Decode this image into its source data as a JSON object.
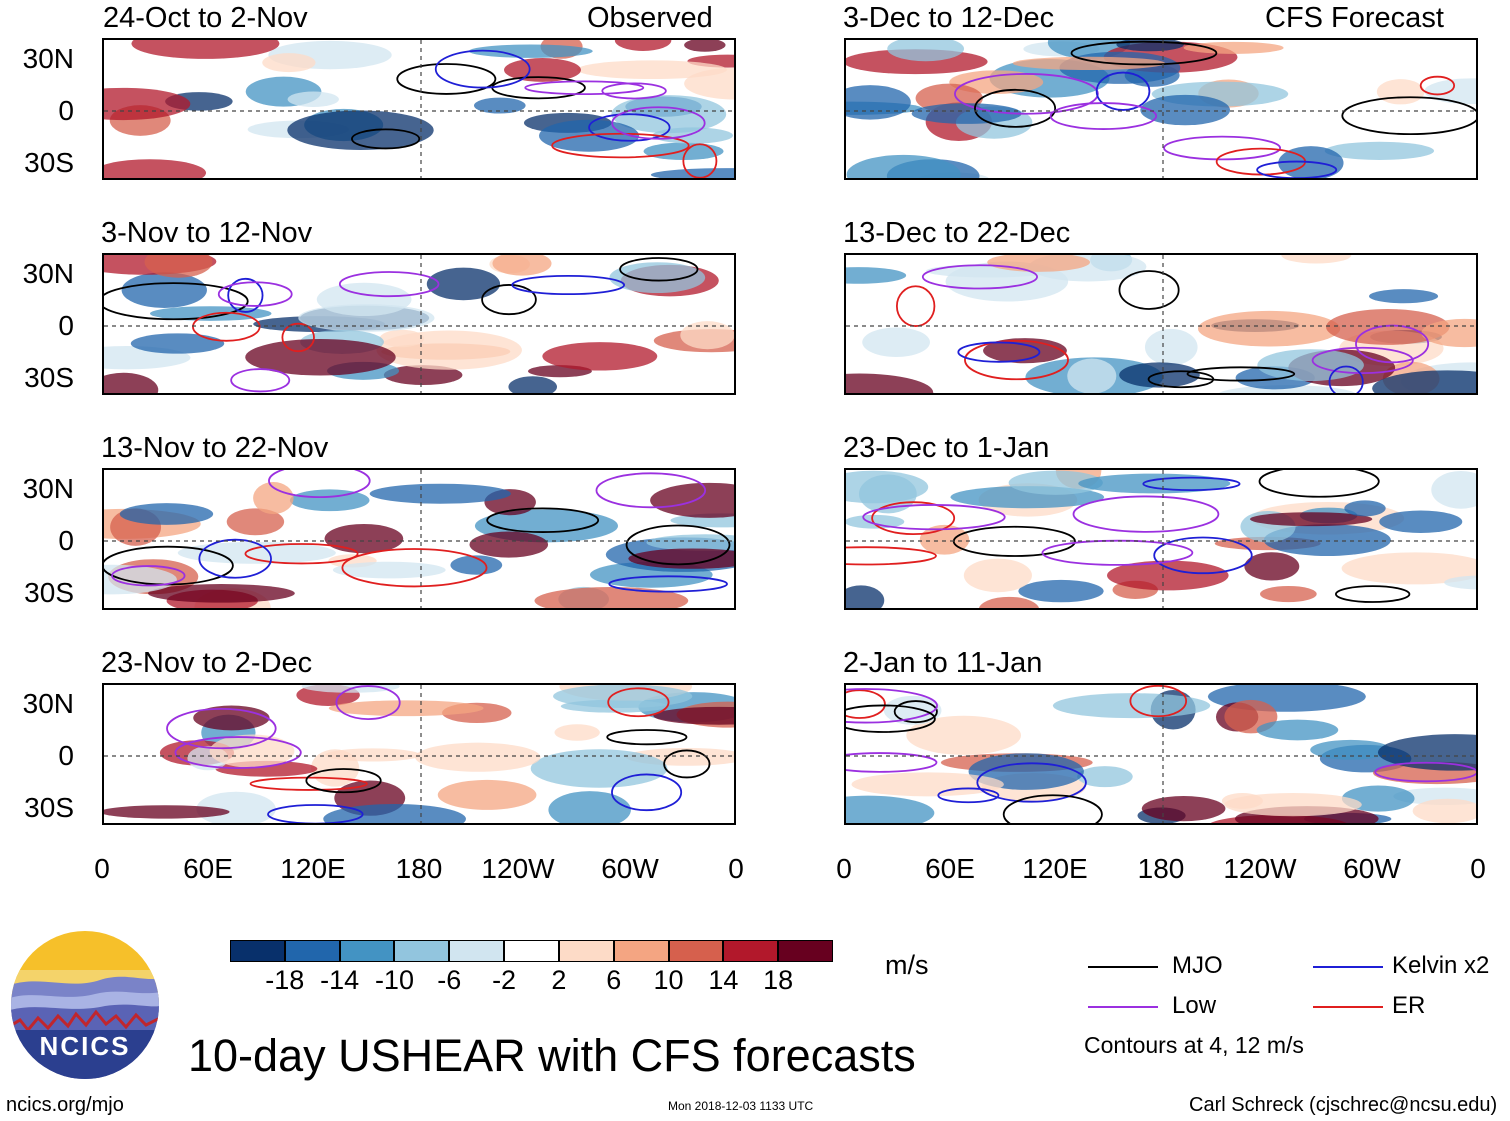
{
  "observed_label": "Observed",
  "forecast_label": "CFS Forecast",
  "panels_left": [
    {
      "title": "24-Oct to 2-Nov"
    },
    {
      "title": "3-Nov to 12-Nov"
    },
    {
      "title": "13-Nov to 22-Nov"
    },
    {
      "title": "23-Nov to 2-Dec"
    }
  ],
  "panels_right": [
    {
      "title": "3-Dec to 12-Dec"
    },
    {
      "title": "13-Dec to 22-Dec"
    },
    {
      "title": "23-Dec to 1-Jan"
    },
    {
      "title": "2-Jan to 11-Jan"
    }
  ],
  "y_labels": [
    "30N",
    "0",
    "30S"
  ],
  "x_labels": [
    "0",
    "60E",
    "120E",
    "180",
    "120W",
    "60W",
    "0"
  ],
  "colorbar": {
    "colors": [
      "#08306b",
      "#2166ac",
      "#4393c3",
      "#92c5de",
      "#d1e5f0",
      "#ffffff",
      "#fddbc7",
      "#f4a582",
      "#d6604d",
      "#b2182b",
      "#67001f"
    ],
    "ticks": [
      "-18",
      "-14",
      "-10",
      "-6",
      "-2",
      "2",
      "6",
      "10",
      "14",
      "18"
    ],
    "units": "m/s"
  },
  "legend": {
    "items": [
      {
        "label": "MJO",
        "color": "#000000"
      },
      {
        "label": "Kelvin x2",
        "color": "#1f1fd6"
      },
      {
        "label": "Low",
        "color": "#9b30e0"
      },
      {
        "label": "ER",
        "color": "#e01f1f"
      }
    ],
    "note": "Contours at 4, 12 m/s"
  },
  "logo_text": "NCICS",
  "main_title": "10-day USHEAR with CFS forecasts",
  "footer": {
    "left": "ncics.org/mjo",
    "center": "Mon 2018-12-03 1133 UTC",
    "right": "Carl Schreck (cjschrec@ncsu.edu)"
  }
}
